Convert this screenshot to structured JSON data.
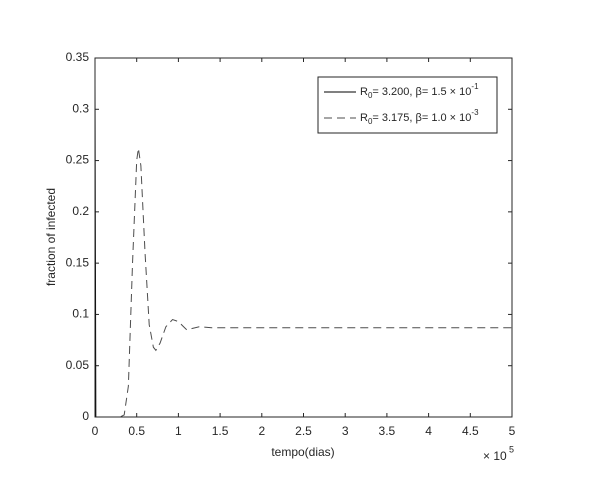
{
  "chart_data": {
    "type": "line",
    "xlabel": "tempo(dias)",
    "ylabel": "fraction of infected",
    "x_multiplier": {
      "base": "× 10",
      "exponent": "5"
    },
    "xlim": [
      0,
      5
    ],
    "xticks": [
      0,
      0.5,
      1,
      1.5,
      2,
      2.5,
      3,
      3.5,
      4,
      4.5,
      5
    ],
    "ylim": [
      0,
      0.35
    ],
    "yticks": [
      0,
      0.05,
      0.1,
      0.15,
      0.2,
      0.25,
      0.3,
      0.35
    ],
    "grid": false,
    "legend": "upper right",
    "series": [
      {
        "name": "R0= 3.200, β= 1.5 × 10-1",
        "color": "#000000",
        "line_style": "solid",
        "x": [
          0,
          0.01,
          0.3,
          5
        ],
        "values": [
          0.325,
          0,
          0,
          0
        ]
      },
      {
        "name": "R0= 3.175, β= 1.0 × 10-3",
        "color": "#4d4d4d",
        "line_style": "dashed",
        "x": [
          0,
          0.3,
          0.35,
          0.4,
          0.45,
          0.5,
          0.52,
          0.55,
          0.6,
          0.65,
          0.7,
          0.73,
          0.78,
          0.85,
          0.93,
          1.0,
          1.05,
          1.1,
          1.15,
          1.25,
          1.4,
          2,
          3,
          4,
          5
        ],
        "values": [
          0,
          0,
          0.002,
          0.03,
          0.15,
          0.25,
          0.262,
          0.245,
          0.16,
          0.09,
          0.068,
          0.065,
          0.072,
          0.088,
          0.095,
          0.093,
          0.089,
          0.085,
          0.086,
          0.088,
          0.087,
          0.087,
          0.087,
          0.087,
          0.087
        ]
      }
    ]
  }
}
